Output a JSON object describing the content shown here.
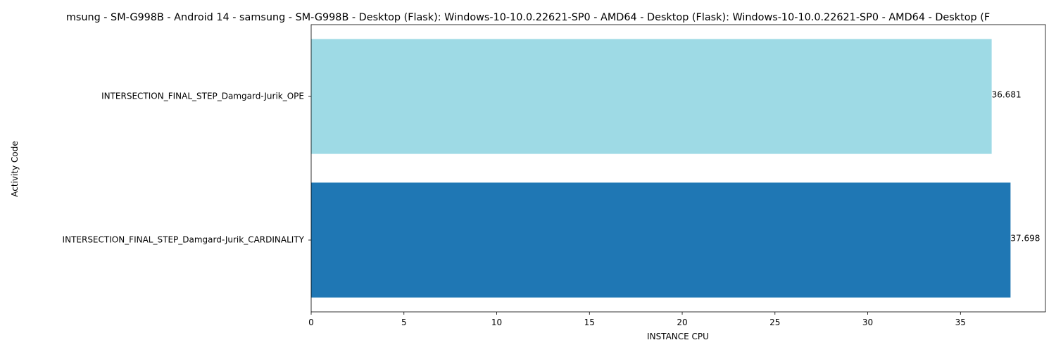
{
  "chart_data": {
    "type": "bar",
    "orientation": "horizontal",
    "title": "msung - SM-G998B - Android 14 - samsung - SM-G998B - Desktop (Flask): Windows-10-10.0.22621-SP0 - AMD64 - Desktop (Flask): Windows-10-10.0.22621-SP0 - AMD64 - Desktop (F",
    "xlabel": "INSTANCE CPU",
    "ylabel": "Activity Code",
    "categories": [
      "INTERSECTION_FINAL_STEP_Damgard-Jurik_CARDINALITY",
      "INTERSECTION_FINAL_STEP_Damgard-Jurik_OPE"
    ],
    "values": [
      37.698,
      36.681
    ],
    "value_labels": [
      "37.698",
      "36.681"
    ],
    "colors": [
      "#1f77b4",
      "#9edae5"
    ],
    "xticks": [
      0,
      5,
      10,
      15,
      20,
      25,
      30,
      35
    ],
    "xtick_labels": [
      "0",
      "5",
      "10",
      "15",
      "20",
      "25",
      "30",
      "35"
    ],
    "xlim": [
      0,
      39.58
    ],
    "grid": false,
    "legend": "none"
  }
}
